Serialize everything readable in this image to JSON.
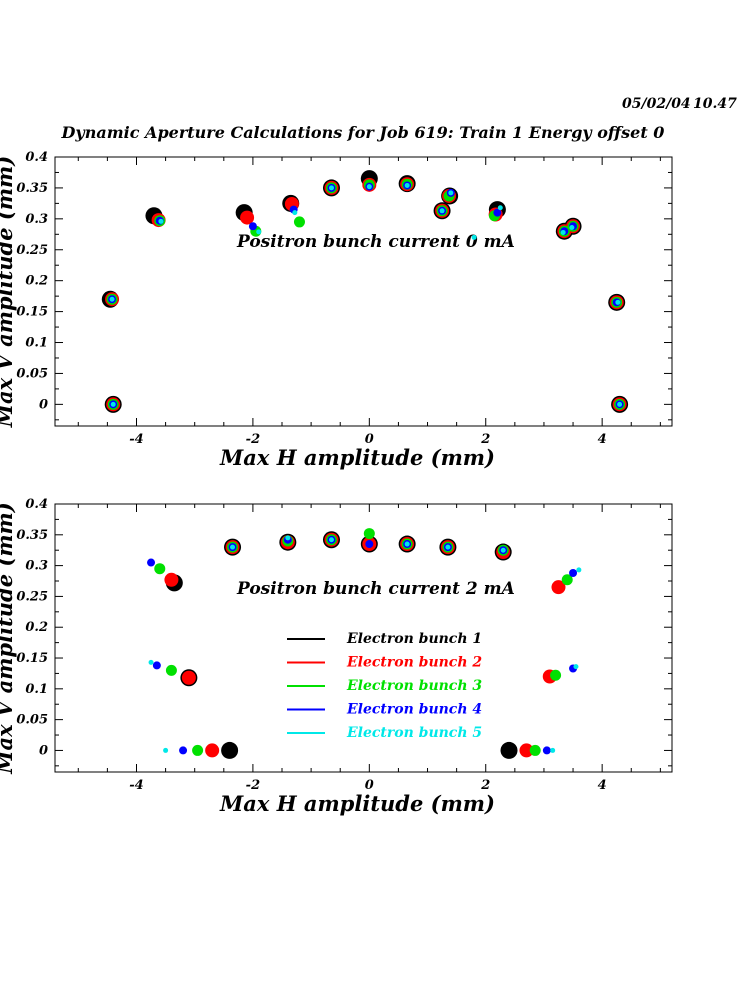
{
  "header": {
    "date": "05/02/04",
    "time": "10.47",
    "title": "Dynamic Aperture Calculations for Job 619:  Train 1   Energy offset  0"
  },
  "colors": {
    "bunch1": "#000000",
    "bunch2": "#ff0000",
    "bunch3": "#00e000",
    "bunch4": "#0000ff",
    "bunch5": "#00e8e8"
  },
  "chart_data": [
    {
      "type": "scatter",
      "title": "",
      "annotation": "Positron bunch current  0 mA",
      "xlabel": "Max H amplitude (mm)",
      "ylabel": "Max V amplitude (mm)",
      "xlim": [
        -5.4,
        5.2
      ],
      "ylim": [
        -0.035,
        0.4
      ],
      "x_ticks": [
        "-4",
        "-2",
        "0",
        "2",
        "4"
      ],
      "y_ticks": [
        "0",
        "0.05",
        "0.1",
        "0.15",
        "0.2",
        "0.25",
        "0.3",
        "0.35",
        "0.4"
      ],
      "series": [
        {
          "name": "Electron bunch 1",
          "points": [
            [
              -4.4,
              0.0
            ],
            [
              -4.45,
              0.17
            ],
            [
              -3.7,
              0.305
            ],
            [
              -2.15,
              0.31
            ],
            [
              -1.35,
              0.325
            ],
            [
              -0.65,
              0.35
            ],
            [
              0.0,
              0.365
            ],
            [
              0.65,
              0.357
            ],
            [
              1.25,
              0.313
            ],
            [
              1.38,
              0.337
            ],
            [
              2.2,
              0.315
            ],
            [
              3.35,
              0.28
            ],
            [
              3.5,
              0.288
            ],
            [
              4.25,
              0.165
            ],
            [
              4.3,
              0.0
            ]
          ]
        },
        {
          "name": "Electron bunch 2",
          "points": [
            [
              -4.4,
              0.0
            ],
            [
              -4.42,
              0.17
            ],
            [
              -3.62,
              0.298
            ],
            [
              -2.1,
              0.302
            ],
            [
              -1.33,
              0.324
            ],
            [
              -0.65,
              0.35
            ],
            [
              0.0,
              0.355
            ],
            [
              0.65,
              0.356
            ],
            [
              1.25,
              0.313
            ],
            [
              1.37,
              0.337
            ],
            [
              2.17,
              0.307
            ],
            [
              3.35,
              0.28
            ],
            [
              3.5,
              0.288
            ],
            [
              4.25,
              0.165
            ],
            [
              4.3,
              0.0
            ]
          ]
        },
        {
          "name": "Electron bunch 3",
          "points": [
            [
              -4.4,
              0.0
            ],
            [
              -4.42,
              0.17
            ],
            [
              -3.6,
              0.297
            ],
            [
              -1.95,
              0.28
            ],
            [
              -1.2,
              0.295
            ],
            [
              -0.65,
              0.35
            ],
            [
              0.0,
              0.355
            ],
            [
              0.65,
              0.356
            ],
            [
              1.25,
              0.313
            ],
            [
              1.37,
              0.337
            ],
            [
              2.15,
              0.305
            ],
            [
              3.35,
              0.28
            ],
            [
              3.5,
              0.288
            ],
            [
              4.25,
              0.165
            ],
            [
              4.3,
              0.0
            ]
          ]
        },
        {
          "name": "Electron bunch 4",
          "points": [
            [
              -4.4,
              0.0
            ],
            [
              -4.42,
              0.17
            ],
            [
              -3.6,
              0.297
            ],
            [
              -2.0,
              0.288
            ],
            [
              -1.3,
              0.315
            ],
            [
              -0.65,
              0.35
            ],
            [
              0.0,
              0.352
            ],
            [
              0.65,
              0.354
            ],
            [
              1.25,
              0.313
            ],
            [
              1.4,
              0.342
            ],
            [
              2.2,
              0.31
            ],
            [
              3.35,
              0.28
            ],
            [
              3.5,
              0.288
            ],
            [
              4.25,
              0.165
            ],
            [
              4.3,
              0.0
            ]
          ]
        },
        {
          "name": "Electron bunch 5",
          "points": [
            [
              -4.4,
              0.0
            ],
            [
              -4.42,
              0.17
            ],
            [
              -3.58,
              0.296
            ],
            [
              -1.9,
              0.279
            ],
            [
              -1.28,
              0.31
            ],
            [
              -0.65,
              0.35
            ],
            [
              0.0,
              0.352
            ],
            [
              0.65,
              0.354
            ],
            [
              1.25,
              0.313
            ],
            [
              1.4,
              0.342
            ],
            [
              1.8,
              0.27
            ],
            [
              2.25,
              0.318
            ],
            [
              3.33,
              0.278
            ],
            [
              3.48,
              0.286
            ],
            [
              4.27,
              0.165
            ],
            [
              4.3,
              0.0
            ]
          ]
        }
      ]
    },
    {
      "type": "scatter",
      "title": "",
      "annotation": "Positron bunch current  2 mA",
      "xlabel": "Max H amplitude (mm)",
      "ylabel": "Max V amplitude (mm)",
      "xlim": [
        -5.4,
        5.2
      ],
      "ylim": [
        -0.035,
        0.4
      ],
      "x_ticks": [
        "-4",
        "-2",
        "0",
        "2",
        "4"
      ],
      "y_ticks": [
        "0",
        "0.05",
        "0.1",
        "0.15",
        "0.2",
        "0.25",
        "0.3",
        "0.35",
        "0.4"
      ],
      "legend": {
        "placement": "center",
        "entries": [
          "Electron bunch 1",
          "Electron bunch 2",
          "Electron bunch 3",
          "Electron bunch 4",
          "Electron bunch 5"
        ]
      },
      "series": [
        {
          "name": "Electron bunch 1",
          "points": [
            [
              -2.4,
              0.0
            ],
            [
              -3.1,
              0.118
            ],
            [
              -3.35,
              0.272
            ],
            [
              -2.35,
              0.33
            ],
            [
              -1.4,
              0.338
            ],
            [
              -0.65,
              0.342
            ],
            [
              0.0,
              0.335
            ],
            [
              0.65,
              0.335
            ],
            [
              1.35,
              0.33
            ],
            [
              2.3,
              0.322
            ],
            [
              2.4,
              0.0
            ]
          ]
        },
        {
          "name": "Electron bunch 2",
          "points": [
            [
              -2.7,
              0.0
            ],
            [
              -3.1,
              0.118
            ],
            [
              -3.4,
              0.277
            ],
            [
              -2.35,
              0.33
            ],
            [
              -1.4,
              0.338
            ],
            [
              -0.65,
              0.342
            ],
            [
              0.0,
              0.335
            ],
            [
              0.65,
              0.335
            ],
            [
              1.35,
              0.33
            ],
            [
              2.3,
              0.322
            ],
            [
              2.7,
              0.0
            ],
            [
              3.1,
              0.12
            ],
            [
              3.25,
              0.265
            ]
          ]
        },
        {
          "name": "Electron bunch 3",
          "points": [
            [
              -2.95,
              0.0
            ],
            [
              -3.4,
              0.13
            ],
            [
              -3.6,
              0.295
            ],
            [
              -2.35,
              0.33
            ],
            [
              -1.4,
              0.34
            ],
            [
              -0.65,
              0.342
            ],
            [
              0.0,
              0.352
            ],
            [
              0.65,
              0.335
            ],
            [
              1.35,
              0.33
            ],
            [
              2.3,
              0.325
            ],
            [
              2.85,
              0.0
            ],
            [
              3.2,
              0.122
            ],
            [
              3.4,
              0.277
            ]
          ]
        },
        {
          "name": "Electron bunch 4",
          "points": [
            [
              -3.2,
              0.0
            ],
            [
              -3.65,
              0.138
            ],
            [
              -3.75,
              0.305
            ],
            [
              -2.35,
              0.33
            ],
            [
              -1.4,
              0.342
            ],
            [
              -0.65,
              0.342
            ],
            [
              0.0,
              0.335
            ],
            [
              0.65,
              0.335
            ],
            [
              1.35,
              0.33
            ],
            [
              2.3,
              0.325
            ],
            [
              3.05,
              0.0
            ],
            [
              3.5,
              0.133
            ],
            [
              3.5,
              0.288
            ]
          ]
        },
        {
          "name": "Electron bunch 5",
          "points": [
            [
              -3.5,
              0.0
            ],
            [
              -3.75,
              0.143
            ],
            [
              -2.35,
              0.33
            ],
            [
              -1.4,
              0.345
            ],
            [
              -0.65,
              0.342
            ],
            [
              0.65,
              0.335
            ],
            [
              1.35,
              0.33
            ],
            [
              2.3,
              0.325
            ],
            [
              3.15,
              0.0
            ],
            [
              3.55,
              0.136
            ],
            [
              3.6,
              0.293
            ]
          ]
        }
      ]
    }
  ]
}
